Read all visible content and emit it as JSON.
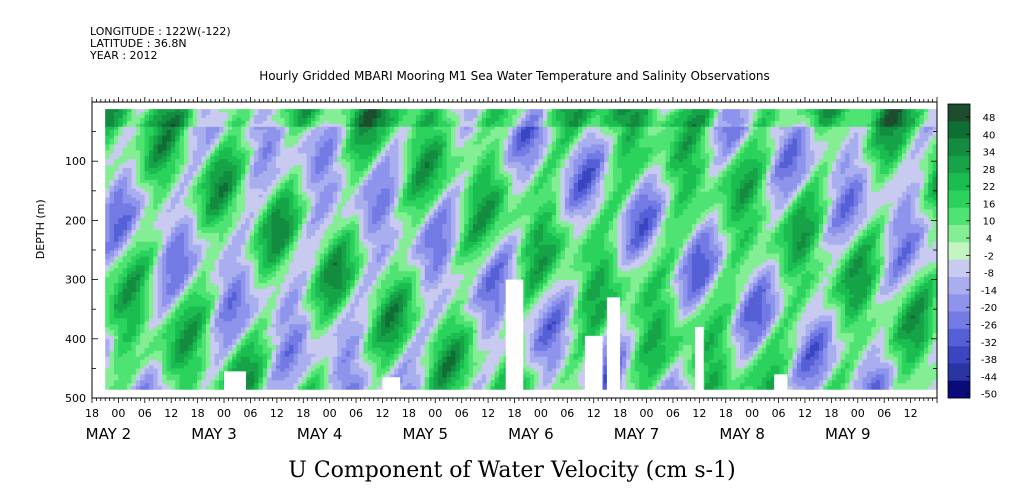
{
  "header": {
    "longitude": "LONGITUDE : 122W(-122)",
    "latitude": "LATITUDE : 36.8N",
    "year": "YEAR : 2012",
    "title": "Hourly Gridded MBARI Mooring M1 Sea Water Temperature and Salinity Observations"
  },
  "chart_data": {
    "type": "heatmap",
    "title": "Hourly Gridded MBARI Mooring M1 Sea Water Temperature and Salinity Observations",
    "xlabel": "U Component of Water Velocity (cm s-1)",
    "ylabel": "DEPTH (m)",
    "x_unit": "hours after 2012-05-01 18:00",
    "xlim": [
      0,
      192
    ],
    "ylim": [
      500,
      0
    ],
    "y_reversed": true,
    "y_ticks": [
      100,
      200,
      300,
      400,
      500
    ],
    "x_hour_ticks": [
      "18",
      "00",
      "06",
      "12",
      "18",
      "00",
      "06",
      "12",
      "18",
      "00",
      "06",
      "12",
      "18",
      "00",
      "06",
      "12",
      "18",
      "00",
      "06",
      "12",
      "18",
      "00",
      "06",
      "12",
      "18",
      "00",
      "06",
      "12",
      "18",
      "00",
      "06",
      "12"
    ],
    "x_day_labels": [
      "MAY  2",
      "MAY  3",
      "MAY  4",
      "MAY  5",
      "MAY  6",
      "MAY  7",
      "MAY  8",
      "MAY  9"
    ],
    "colorbar": {
      "levels": [
        "48",
        "40",
        "34",
        "28",
        "22",
        "16",
        "10",
        "4",
        "-2",
        "-8",
        "-14",
        "-20",
        "-26",
        "-32",
        "-38",
        "-44",
        "-50"
      ],
      "colors": [
        "#1d4d2d",
        "#0f6e34",
        "#138c3f",
        "#17a347",
        "#1bbd50",
        "#2bd35d",
        "#4ee373",
        "#84ee94",
        "#c2f5c2",
        "#c8cbef",
        "#a9aeee",
        "#8e94ec",
        "#737ae4",
        "#5660d6",
        "#3a45c0",
        "#2a34a3",
        "#0a0a7a"
      ]
    },
    "data_region": {
      "x_start": 3,
      "x_end": 192,
      "depth_top": 12,
      "depth_bottom": 485
    },
    "field_description": "Alternating bands of positive (green) and negative (blue) U velocity, roughly -20 to +30 cm/s"
  }
}
